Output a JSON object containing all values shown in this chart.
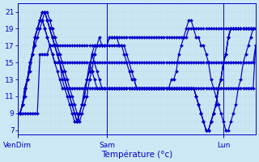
{
  "xlabel": "Température (°c)",
  "background_color": "#cce8f4",
  "grid_color": "#b8d4e0",
  "line_color": "#0000cc",
  "marker": "D",
  "markersize": 2.0,
  "linewidth": 0.85,
  "ylim": [
    6.5,
    22.0
  ],
  "yticks": [
    7,
    9,
    11,
    13,
    15,
    17,
    19,
    21
  ],
  "xlim": [
    0,
    96
  ],
  "xtick_positions": [
    0,
    36,
    83
  ],
  "xtick_labels": [
    "VenDim",
    "Sam",
    "Lun"
  ],
  "series": [
    [
      9,
      9,
      9,
      9,
      9,
      9,
      9,
      9,
      9,
      16,
      16,
      16,
      16,
      17,
      17,
      17,
      17,
      17,
      17,
      17,
      17,
      17,
      17,
      17,
      17,
      17,
      17,
      17,
      17,
      17,
      17,
      17,
      17,
      17,
      17,
      17,
      17,
      18,
      18,
      18,
      18,
      18,
      18,
      18,
      18,
      18,
      18,
      18,
      18,
      18,
      18,
      18,
      18,
      18,
      18,
      18,
      18,
      18,
      18,
      18,
      18,
      18,
      18,
      18,
      18,
      18,
      18,
      18,
      18,
      19,
      19,
      19,
      19,
      19,
      19,
      19,
      19,
      19,
      19,
      19,
      19,
      19,
      19,
      19,
      19,
      19,
      19,
      19,
      19,
      19,
      19,
      19,
      19,
      19,
      19,
      19,
      19
    ],
    [
      9,
      9,
      10,
      11,
      13,
      14,
      16,
      17,
      18,
      19,
      20,
      21,
      21,
      20,
      19,
      18,
      17,
      16,
      15,
      14,
      13,
      12,
      11,
      10,
      9,
      8,
      9,
      10,
      11,
      13,
      14,
      16,
      17,
      18,
      17,
      17,
      17,
      18,
      18,
      18,
      18,
      17,
      17,
      16,
      15,
      14,
      13,
      13,
      12,
      12,
      12,
      12,
      12,
      12,
      12,
      12,
      12,
      12,
      12,
      12,
      12,
      12,
      13,
      13,
      14,
      16,
      17,
      18,
      19,
      20,
      20,
      19,
      18,
      18,
      17,
      17,
      16,
      15,
      13,
      12,
      11,
      10,
      9,
      8,
      7,
      7,
      8,
      9,
      10,
      12,
      13,
      15,
      16,
      17,
      18,
      19,
      19
    ],
    [
      9,
      9,
      10,
      12,
      13,
      15,
      16,
      18,
      19,
      20,
      21,
      21,
      20,
      19,
      18,
      17,
      16,
      15,
      14,
      13,
      12,
      11,
      10,
      9,
      8,
      9,
      10,
      11,
      13,
      14,
      16,
      17,
      17,
      17,
      17,
      17,
      17,
      17,
      17,
      17,
      17,
      17,
      17,
      17,
      16,
      15,
      14,
      13,
      12,
      12,
      12,
      12,
      12,
      12,
      12,
      12,
      12,
      12,
      12,
      12,
      12,
      12,
      12,
      12,
      12,
      12,
      12,
      12,
      12,
      12,
      12,
      12,
      11,
      10,
      9,
      8,
      7,
      7,
      8,
      9,
      10,
      12,
      13,
      15,
      16,
      18,
      19,
      19,
      19,
      19,
      19,
      19,
      19,
      19,
      19,
      19,
      19
    ],
    [
      9,
      9,
      10,
      12,
      13,
      15,
      16,
      18,
      19,
      20,
      21,
      21,
      20,
      19,
      18,
      17,
      16,
      15,
      14,
      13,
      12,
      11,
      10,
      9,
      8,
      9,
      10,
      11,
      13,
      14,
      16,
      15,
      14,
      13,
      12,
      12,
      12,
      12,
      12,
      12,
      12,
      12,
      12,
      12,
      12,
      12,
      12,
      12,
      12,
      12,
      12,
      12,
      12,
      12,
      12,
      12,
      12,
      12,
      12,
      12,
      12,
      12,
      12,
      12,
      12,
      12,
      12,
      12,
      12,
      12,
      12,
      12,
      11,
      10,
      9,
      8,
      7,
      7,
      8,
      9,
      10,
      12,
      13,
      15,
      16,
      18,
      19,
      19,
      19,
      19,
      19,
      19,
      19,
      19,
      19,
      19,
      19
    ],
    [
      9,
      9,
      10,
      12,
      13,
      15,
      16,
      18,
      19,
      20,
      21,
      21,
      20,
      19,
      18,
      17,
      16,
      15,
      13,
      12,
      11,
      10,
      9,
      8,
      8,
      9,
      10,
      12,
      13,
      15,
      14,
      13,
      12,
      12,
      12,
      12,
      12,
      12,
      12,
      12,
      12,
      12,
      12,
      12,
      12,
      12,
      12,
      12,
      12,
      12,
      12,
      12,
      12,
      12,
      12,
      12,
      12,
      12,
      12,
      12,
      12,
      12,
      12,
      12,
      12,
      12,
      12,
      12,
      12,
      12,
      12,
      12,
      11,
      10,
      9,
      8,
      7,
      7,
      8,
      9,
      10,
      12,
      13,
      15,
      16,
      18,
      19,
      19,
      19,
      19,
      19,
      19,
      19,
      19,
      19,
      19,
      19
    ],
    [
      9,
      9,
      10,
      12,
      13,
      15,
      16,
      18,
      19,
      20,
      20,
      19,
      18,
      17,
      16,
      15,
      15,
      15,
      15,
      15,
      15,
      15,
      15,
      15,
      15,
      15,
      15,
      15,
      15,
      15,
      15,
      15,
      15,
      15,
      15,
      15,
      15,
      15,
      15,
      15,
      15,
      15,
      15,
      15,
      15,
      15,
      15,
      15,
      15,
      15,
      15,
      15,
      15,
      15,
      15,
      15,
      15,
      15,
      15,
      15,
      15,
      15,
      15,
      15,
      15,
      15,
      15,
      15,
      15,
      15,
      15,
      15,
      15,
      15,
      15,
      15,
      15,
      15,
      15,
      15,
      15,
      15,
      15,
      15,
      15,
      15,
      15,
      15,
      15,
      15,
      15,
      15,
      15,
      15,
      15,
      15,
      17
    ],
    [
      9,
      9,
      10,
      12,
      13,
      15,
      16,
      18,
      19,
      20,
      20,
      19,
      18,
      17,
      16,
      15,
      14,
      13,
      12,
      12,
      12,
      12,
      12,
      12,
      12,
      12,
      12,
      12,
      12,
      12,
      12,
      12,
      12,
      12,
      12,
      12,
      12,
      12,
      12,
      12,
      12,
      12,
      12,
      12,
      12,
      12,
      12,
      12,
      12,
      12,
      12,
      12,
      12,
      12,
      12,
      12,
      12,
      12,
      12,
      12,
      12,
      12,
      12,
      12,
      12,
      12,
      12,
      12,
      12,
      12,
      12,
      12,
      12,
      12,
      12,
      12,
      12,
      12,
      12,
      12,
      12,
      12,
      12,
      12,
      12,
      12,
      12,
      12,
      12,
      12,
      12,
      12,
      12,
      12,
      12,
      12,
      17
    ]
  ]
}
